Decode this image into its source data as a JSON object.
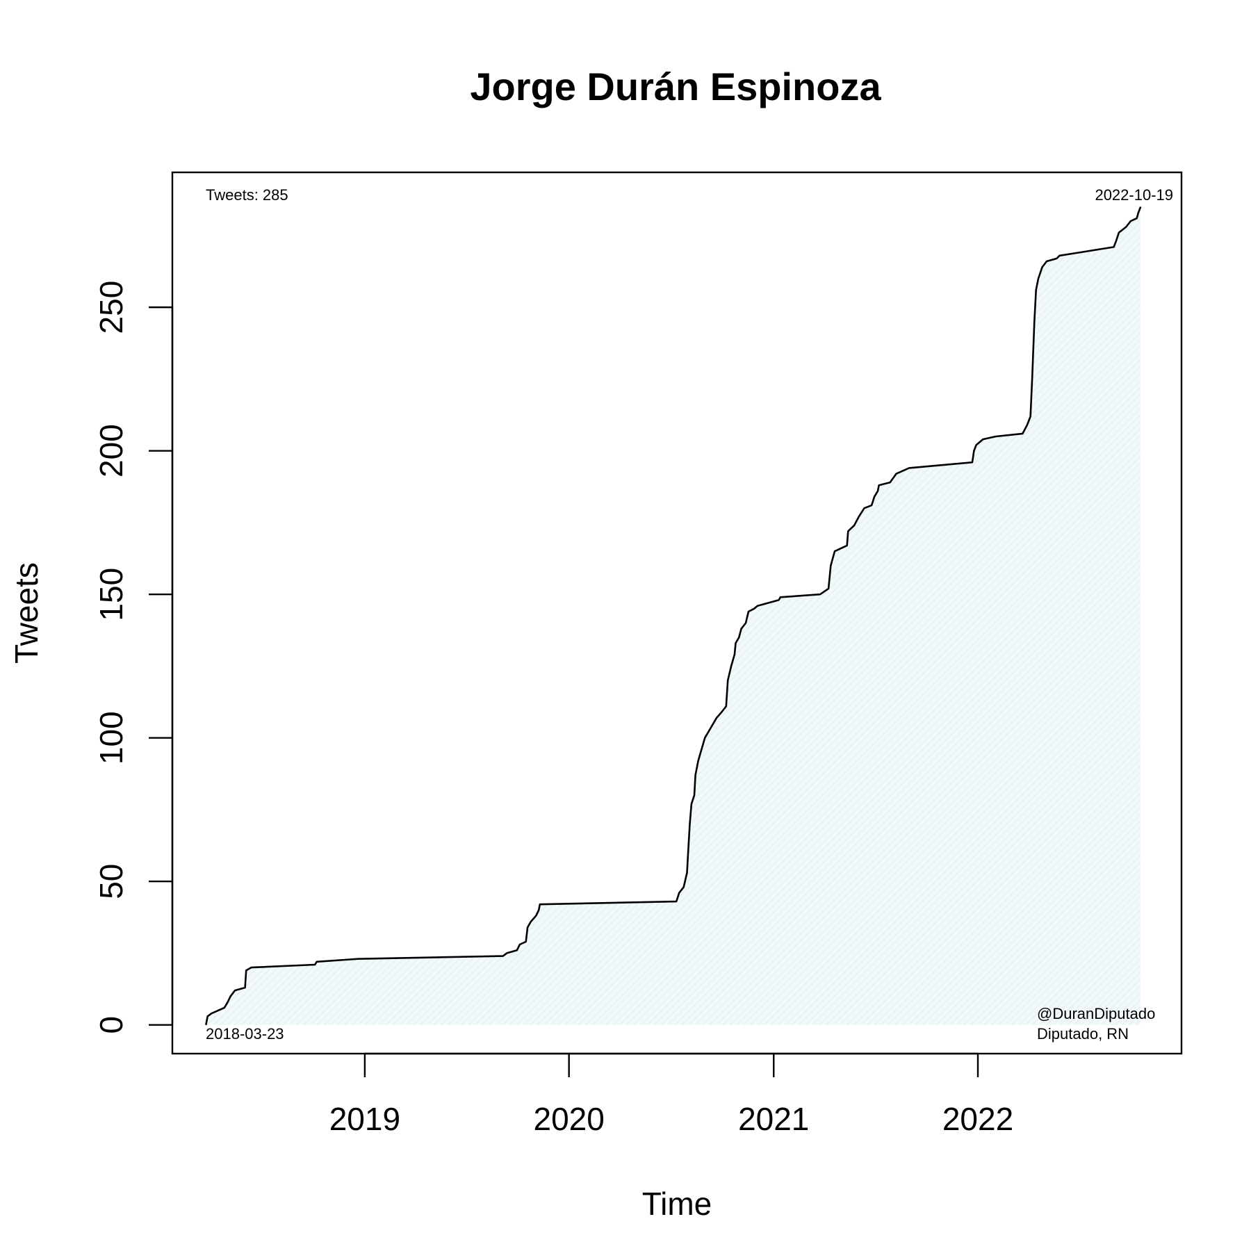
{
  "chart_data": {
    "type": "area",
    "title": "Jorge Durán Espinoza",
    "xlabel": "Time",
    "ylabel": "Tweets",
    "x_domain": [
      "2018-01-22",
      "2022-12-31"
    ],
    "ylim": [
      -10,
      297
    ],
    "x_ticks": [
      {
        "date": "2019-01-01",
        "label": "2019"
      },
      {
        "date": "2020-01-01",
        "label": "2020"
      },
      {
        "date": "2021-01-01",
        "label": "2021"
      },
      {
        "date": "2022-01-01",
        "label": "2022"
      }
    ],
    "y_ticks": [
      0,
      50,
      100,
      150,
      200,
      250
    ],
    "annotations": {
      "top_left": "Tweets: 285",
      "top_right": "2022-10-19",
      "bottom_left": "2018-03-23",
      "bottom_right_line1": "@DuranDiputado",
      "bottom_right_line2": "Diputado, RN"
    },
    "fill_color": "#e8f4f8",
    "line_color": "#000000",
    "series": [
      {
        "points": [
          [
            "2018-03-23",
            0
          ],
          [
            "2018-03-26",
            3
          ],
          [
            "2018-04-02",
            4
          ],
          [
            "2018-04-25",
            6
          ],
          [
            "2018-05-01",
            8
          ],
          [
            "2018-05-06",
            10
          ],
          [
            "2018-05-14",
            12
          ],
          [
            "2018-06-01",
            13
          ],
          [
            "2018-06-03",
            19
          ],
          [
            "2018-06-12",
            20
          ],
          [
            "2018-10-04",
            21
          ],
          [
            "2018-10-07",
            22
          ],
          [
            "2018-12-20",
            23
          ],
          [
            "2019-09-05",
            24
          ],
          [
            "2019-09-12",
            25
          ],
          [
            "2019-09-30",
            26
          ],
          [
            "2019-10-05",
            28
          ],
          [
            "2019-10-16",
            29
          ],
          [
            "2019-10-19",
            34
          ],
          [
            "2019-10-25",
            36
          ],
          [
            "2019-11-03",
            38
          ],
          [
            "2019-11-08",
            40
          ],
          [
            "2019-11-10",
            42
          ],
          [
            "2020-07-11",
            43
          ],
          [
            "2020-07-16",
            46
          ],
          [
            "2020-07-24",
            48
          ],
          [
            "2020-07-30",
            53
          ],
          [
            "2020-08-01",
            60
          ],
          [
            "2020-08-04",
            70
          ],
          [
            "2020-08-07",
            77
          ],
          [
            "2020-08-12",
            80
          ],
          [
            "2020-08-14",
            87
          ],
          [
            "2020-08-19",
            92
          ],
          [
            "2020-08-25",
            96
          ],
          [
            "2020-08-31",
            100
          ],
          [
            "2020-09-06",
            102
          ],
          [
            "2020-09-12",
            104
          ],
          [
            "2020-09-21",
            107
          ],
          [
            "2020-09-30",
            109
          ],
          [
            "2020-10-08",
            111
          ],
          [
            "2020-10-11",
            120
          ],
          [
            "2020-10-17",
            125
          ],
          [
            "2020-10-23",
            129
          ],
          [
            "2020-10-25",
            133
          ],
          [
            "2020-10-31",
            135
          ],
          [
            "2020-11-04",
            138
          ],
          [
            "2020-11-12",
            140
          ],
          [
            "2020-11-17",
            144
          ],
          [
            "2020-11-27",
            145
          ],
          [
            "2020-12-03",
            146
          ],
          [
            "2021-01-10",
            148
          ],
          [
            "2021-01-13",
            149
          ],
          [
            "2021-03-25",
            150
          ],
          [
            "2021-04-09",
            152
          ],
          [
            "2021-04-13",
            160
          ],
          [
            "2021-04-20",
            165
          ],
          [
            "2021-05-12",
            167
          ],
          [
            "2021-05-14",
            172
          ],
          [
            "2021-05-25",
            174
          ],
          [
            "2021-06-02",
            177
          ],
          [
            "2021-06-12",
            180
          ],
          [
            "2021-06-25",
            181
          ],
          [
            "2021-06-30",
            184
          ],
          [
            "2021-07-06",
            186
          ],
          [
            "2021-07-08",
            188
          ],
          [
            "2021-07-28",
            189
          ],
          [
            "2021-08-08",
            192
          ],
          [
            "2021-08-31",
            194
          ],
          [
            "2021-12-22",
            196
          ],
          [
            "2021-12-25",
            200
          ],
          [
            "2021-12-29",
            202
          ],
          [
            "2022-01-10",
            204
          ],
          [
            "2022-02-02",
            205
          ],
          [
            "2022-03-22",
            206
          ],
          [
            "2022-03-30",
            209
          ],
          [
            "2022-04-05",
            212
          ],
          [
            "2022-04-08",
            225
          ],
          [
            "2022-04-12",
            245
          ],
          [
            "2022-04-15",
            256
          ],
          [
            "2022-04-19",
            260
          ],
          [
            "2022-04-26",
            264
          ],
          [
            "2022-05-04",
            266
          ],
          [
            "2022-05-22",
            267
          ],
          [
            "2022-05-27",
            268
          ],
          [
            "2022-06-29",
            269
          ],
          [
            "2022-07-31",
            270
          ],
          [
            "2022-09-01",
            271
          ],
          [
            "2022-09-05",
            273
          ],
          [
            "2022-09-10",
            276
          ],
          [
            "2022-09-23",
            278
          ],
          [
            "2022-10-01",
            280
          ],
          [
            "2022-10-12",
            281
          ],
          [
            "2022-10-15",
            283
          ],
          [
            "2022-10-19",
            285
          ]
        ]
      }
    ]
  }
}
